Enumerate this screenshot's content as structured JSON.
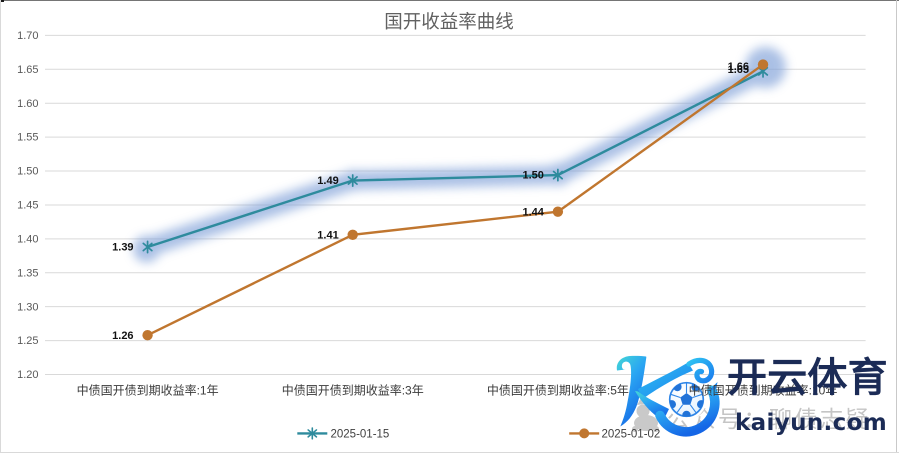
{
  "chart_data": {
    "type": "line",
    "title": "国开收益率曲线",
    "categories": [
      "中债国开债到期收益率:1年",
      "中债国开债到期收益率:3年",
      "中债国开债到期收益率:5年",
      "中债国开债到期收益率:10年"
    ],
    "series": [
      {
        "name": "2025-01-15",
        "color": "#2e8b9d",
        "marker": "asterisk",
        "values": [
          1.39,
          1.49,
          1.5,
          1.65
        ],
        "plot_values": [
          1.388,
          1.486,
          1.494,
          1.647
        ],
        "labels": [
          "1.39",
          "1.49",
          "1.50",
          "1.65"
        ],
        "highlighted": true
      },
      {
        "name": "2025-01-02",
        "color": "#c0762f",
        "marker": "circle",
        "values": [
          1.26,
          1.41,
          1.44,
          1.66
        ],
        "plot_values": [
          1.258,
          1.406,
          1.44,
          1.657
        ],
        "labels": [
          "1.26",
          "1.41",
          "1.44",
          "1.66"
        ]
      }
    ],
    "ylim": [
      1.2,
      1.7
    ],
    "y_step": 0.05,
    "xlabel": "",
    "ylabel": "",
    "grid": true,
    "legend_position": "bottom",
    "gridline_color": "#d9d9d9",
    "axis_label_color": "#595959",
    "category_label_color": "#3a3a3a",
    "data_label_color": "#111111",
    "title_color": "#616161",
    "highlight_color": "#83a3d9"
  },
  "watermark": {
    "brand": "开云体育",
    "domain": "kaiyun.com",
    "brand_color": "#1b2b56",
    "background_text": "公众号：聊债志疑",
    "background_text_color": "#c5c5c5",
    "logo": "kaiyun-k-soccer-ball-logo"
  }
}
